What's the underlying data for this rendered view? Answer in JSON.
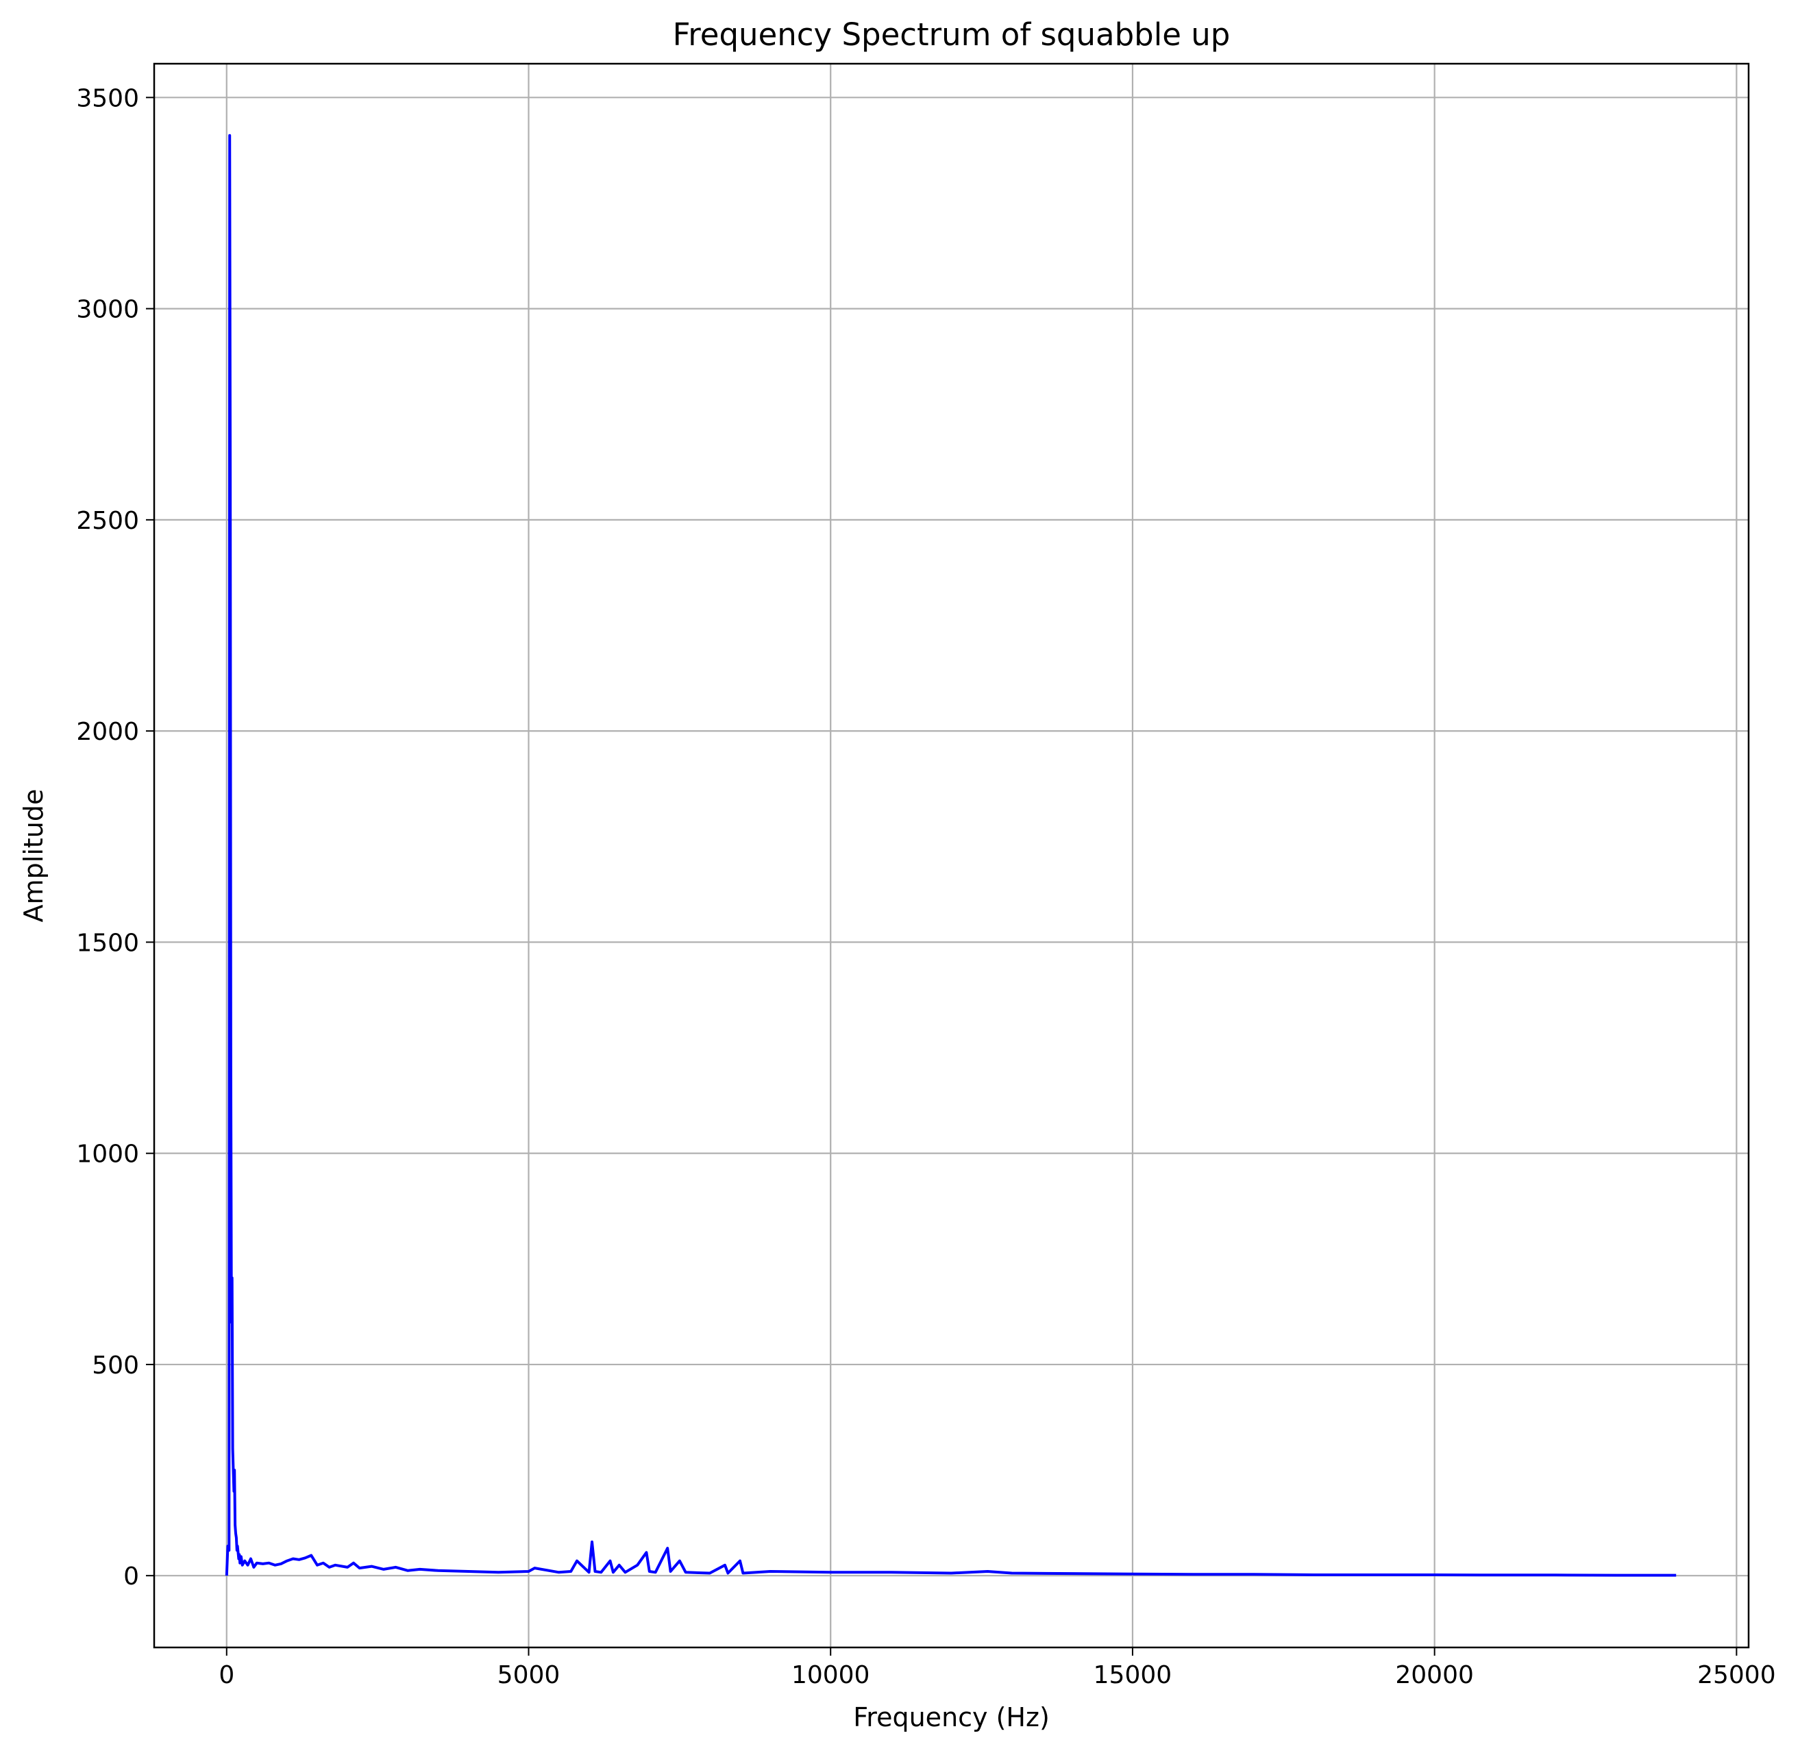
{
  "chart_data": {
    "type": "line",
    "title": "Frequency Spectrum of squabble up",
    "xlabel": "Frequency (Hz)",
    "ylabel": "Amplitude",
    "xlim": [
      -1200,
      25200
    ],
    "ylim": [
      -170,
      3580
    ],
    "xticks": [
      0,
      5000,
      10000,
      15000,
      20000,
      25000
    ],
    "xtick_labels": [
      "0",
      "5000",
      "10000",
      "15000",
      "20000",
      "25000"
    ],
    "yticks": [
      0,
      500,
      1000,
      1500,
      2000,
      2500,
      3000,
      3500
    ],
    "ytick_labels": [
      "0",
      "500",
      "1000",
      "1500",
      "2000",
      "2500",
      "3000",
      "3500"
    ],
    "grid": true,
    "line_color": "#0000ff",
    "grid_color": "#b0b0b0",
    "series": [
      {
        "x": [
          0,
          20,
          40,
          50,
          60,
          70,
          80,
          90,
          100,
          110,
          120,
          130,
          140,
          150,
          160,
          170,
          180,
          190,
          200,
          210,
          220,
          240,
          260,
          300,
          350,
          400,
          450,
          500,
          600,
          700,
          800,
          900,
          1000,
          1100,
          1200,
          1300,
          1400,
          1500,
          1600,
          1700,
          1800,
          2000,
          2100,
          2200,
          2400,
          2600,
          2800,
          3000,
          3200,
          3500,
          4000,
          4500,
          5000,
          5100,
          5500,
          5700,
          5800,
          6000,
          6050,
          6100,
          6200,
          6350,
          6400,
          6500,
          6600,
          6800,
          6950,
          7000,
          7100,
          7300,
          7350,
          7500,
          7600,
          8000,
          8250,
          8300,
          8500,
          8550,
          9000,
          10000,
          11000,
          12000,
          12600,
          13000,
          14000,
          15000,
          16000,
          17000,
          18000,
          19000,
          20000,
          21000,
          22000,
          23000,
          24000
        ],
        "y": [
          0,
          70,
          60,
          3410,
          2600,
          1200,
          600,
          705,
          300,
          250,
          200,
          250,
          120,
          100,
          90,
          60,
          70,
          55,
          40,
          50,
          30,
          45,
          25,
          35,
          25,
          40,
          20,
          30,
          28,
          30,
          25,
          28,
          35,
          40,
          38,
          42,
          48,
          25,
          30,
          20,
          25,
          20,
          30,
          18,
          22,
          15,
          20,
          12,
          15,
          12,
          10,
          8,
          10,
          18,
          8,
          10,
          35,
          8,
          80,
          10,
          8,
          35,
          8,
          25,
          8,
          25,
          55,
          10,
          8,
          65,
          10,
          35,
          8,
          6,
          25,
          6,
          35,
          6,
          10,
          8,
          8,
          6,
          10,
          6,
          5,
          4,
          3,
          3,
          2,
          2,
          2,
          1.5,
          1.5,
          1,
          1
        ]
      }
    ]
  }
}
